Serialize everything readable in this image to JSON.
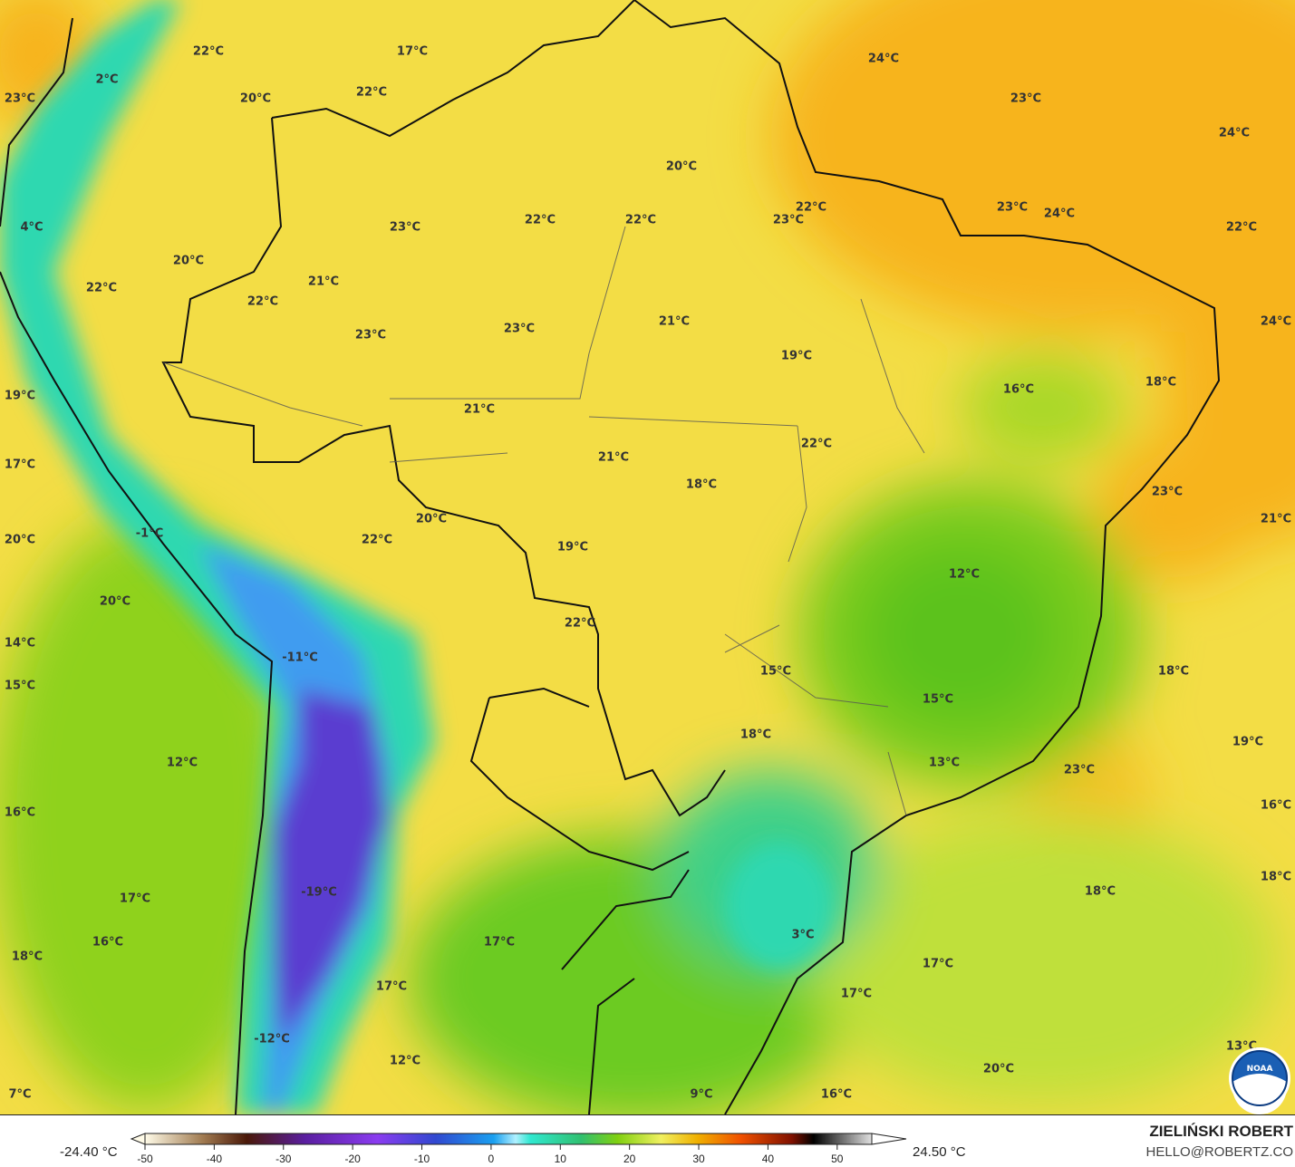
{
  "map": {
    "variable_unit": "°C",
    "colors": {
      "warm_ocean": "#f7b41c",
      "land_yellow": "#f3dd45",
      "green": "#8fd21e",
      "deep_green": "#5cc21a",
      "teal": "#2fd8b0",
      "blue": "#3f7cf0",
      "violet": "#5a3cd0"
    },
    "labels": [
      "22°C",
      "17°C",
      "24°C",
      "2°C",
      "22°C",
      "20°C",
      "23°C",
      "23°C",
      "24°C",
      "20°C",
      "22°C",
      "23°C",
      "24°C",
      "22°C",
      "22°C",
      "23°C",
      "4°C",
      "23°C",
      "22°C",
      "20°C",
      "21°C",
      "22°C",
      "22°C",
      "21°C",
      "24°C",
      "23°C",
      "23°C",
      "19°C",
      "18°C",
      "16°C",
      "19°C",
      "21°C",
      "22°C",
      "21°C",
      "17°C",
      "18°C",
      "23°C",
      "20°C",
      "21°C",
      "-1°C",
      "22°C",
      "20°C",
      "19°C",
      "12°C",
      "20°C",
      "22°C",
      "14°C",
      "-11°C",
      "15°C",
      "18°C",
      "15°C",
      "15°C",
      "18°C",
      "19°C",
      "12°C",
      "13°C",
      "23°C",
      "16°C",
      "16°C",
      "18°C",
      "-19°C",
      "18°C",
      "17°C",
      "3°C",
      "16°C",
      "17°C",
      "18°C",
      "17°C",
      "17°C",
      "17°C",
      "-12°C",
      "13°C",
      "12°C",
      "20°C",
      "7°C",
      "16°C",
      "9°C"
    ],
    "logo": "NOAA"
  },
  "legend": {
    "min_label": "-24.40 °C",
    "max_label": "24.50 °C",
    "ticks": [
      "-50",
      "-40",
      "-30",
      "-20",
      "-10",
      "0",
      "10",
      "20",
      "30",
      "40",
      "50"
    ],
    "scale_range": [
      -50,
      55
    ]
  },
  "credit": {
    "author": "ZIELIŃSKI ROBERT",
    "email": "HELLO@ROBERTZ.CO"
  }
}
